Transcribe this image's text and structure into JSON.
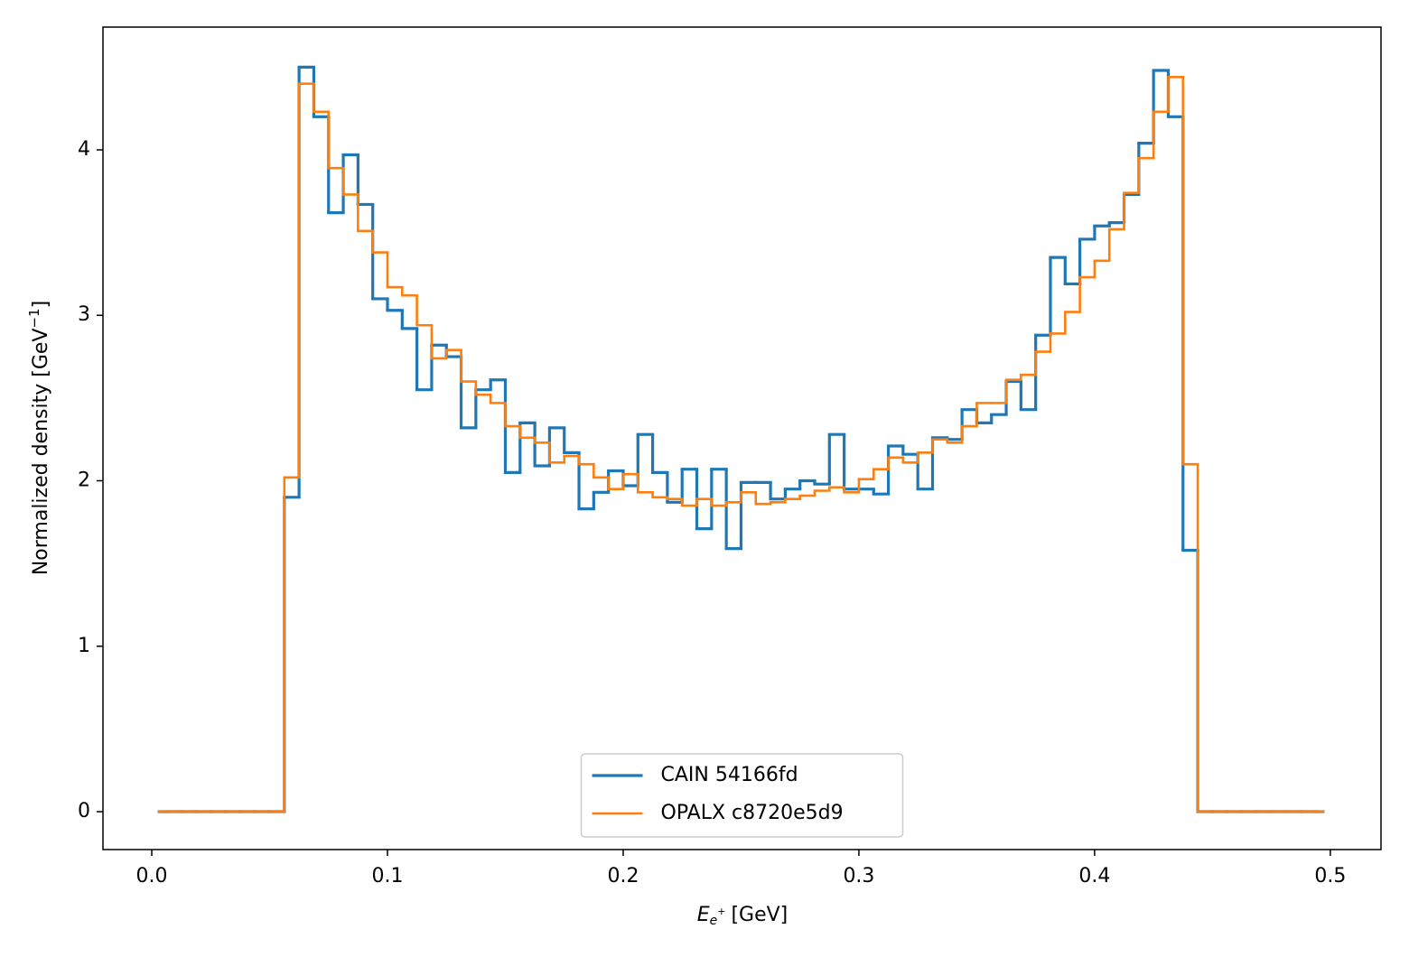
{
  "chart_data": {
    "type": "step_histogram",
    "xlabel": {
      "symbol": "E",
      "subscript": "e",
      "superscript": "+",
      "unit": "[GeV]"
    },
    "ylabel": {
      "text": "Normalized density [GeV",
      "superscript": "−1",
      "close": "]"
    },
    "bins": [
      0,
      0.00625,
      0.0125,
      0.01875,
      0.025,
      0.03125,
      0.0375,
      0.04375,
      0.05,
      0.05625,
      0.0625,
      0.06875,
      0.075,
      0.08125,
      0.0875,
      0.09375,
      0.1,
      0.10625,
      0.1125,
      0.11875,
      0.125,
      0.13125,
      0.1375,
      0.14375,
      0.15,
      0.15625,
      0.1625,
      0.16875,
      0.175,
      0.18125,
      0.1875,
      0.19375,
      0.2,
      0.20625,
      0.2125,
      0.21875,
      0.225,
      0.23125,
      0.2375,
      0.24375,
      0.25,
      0.25625,
      0.2625,
      0.26875,
      0.275,
      0.28125,
      0.2875,
      0.29375,
      0.3,
      0.30625,
      0.3125,
      0.31875,
      0.325,
      0.33125,
      0.3375,
      0.34375,
      0.35,
      0.35625,
      0.3625,
      0.36875,
      0.375,
      0.38125,
      0.3875,
      0.39375,
      0.4,
      0.40625,
      0.4125,
      0.41875,
      0.425,
      0.43125,
      0.4375,
      0.44375,
      0.45,
      0.45625,
      0.4625,
      0.46875,
      0.475,
      0.48125,
      0.4875,
      0.49375,
      0.5
    ],
    "series": [
      {
        "name": "CAIN 54166fd",
        "color": "#1f77b4",
        "values": [
          0,
          0,
          0,
          0,
          0,
          0,
          0,
          0,
          0,
          1.9,
          4.5,
          4.2,
          3.62,
          3.97,
          3.67,
          3.1,
          3.03,
          2.92,
          2.55,
          2.82,
          2.75,
          2.32,
          2.55,
          2.61,
          2.05,
          2.35,
          2.09,
          2.32,
          2.17,
          1.83,
          1.93,
          2.06,
          1.97,
          2.28,
          2.05,
          1.87,
          2.07,
          1.71,
          2.07,
          1.59,
          1.99,
          1.99,
          1.89,
          1.95,
          2.0,
          1.98,
          2.28,
          1.95,
          1.95,
          1.92,
          2.21,
          2.16,
          1.95,
          2.26,
          2.25,
          2.43,
          2.35,
          2.4,
          2.6,
          2.43,
          2.88,
          3.35,
          3.19,
          3.46,
          3.54,
          3.56,
          3.73,
          4.04,
          4.48,
          4.2,
          1.58,
          0,
          0,
          0,
          0,
          0,
          0,
          0,
          0,
          0
        ]
      },
      {
        "name": "OPALX c8720e5d9",
        "color": "#ff7f0e",
        "values": [
          0,
          0,
          0,
          0,
          0,
          0,
          0,
          0,
          0,
          2.02,
          4.4,
          4.23,
          3.89,
          3.73,
          3.51,
          3.38,
          3.17,
          3.12,
          2.94,
          2.74,
          2.79,
          2.6,
          2.52,
          2.47,
          2.33,
          2.26,
          2.23,
          2.11,
          2.15,
          2.1,
          2.02,
          1.95,
          2.04,
          1.93,
          1.9,
          1.89,
          1.85,
          1.89,
          1.85,
          1.87,
          1.93,
          1.86,
          1.87,
          1.89,
          1.91,
          1.94,
          1.96,
          1.93,
          2.01,
          2.07,
          2.14,
          2.11,
          2.17,
          2.25,
          2.23,
          2.33,
          2.47,
          2.47,
          2.61,
          2.64,
          2.78,
          2.89,
          3.02,
          3.23,
          3.33,
          3.52,
          3.74,
          3.95,
          4.23,
          4.44,
          2.1,
          0,
          0,
          0,
          0,
          0,
          0,
          0,
          0,
          0
        ]
      }
    ],
    "xlim": [
      -0.0207,
      0.5215
    ],
    "ylim": [
      -0.229,
      4.742
    ],
    "xticks": [
      {
        "value": 0,
        "label": "0.0"
      },
      0.1,
      0.2,
      0.3,
      0.4,
      0.5
    ],
    "yticks": [
      0,
      1,
      2,
      3,
      4
    ],
    "legend": "lower center"
  }
}
